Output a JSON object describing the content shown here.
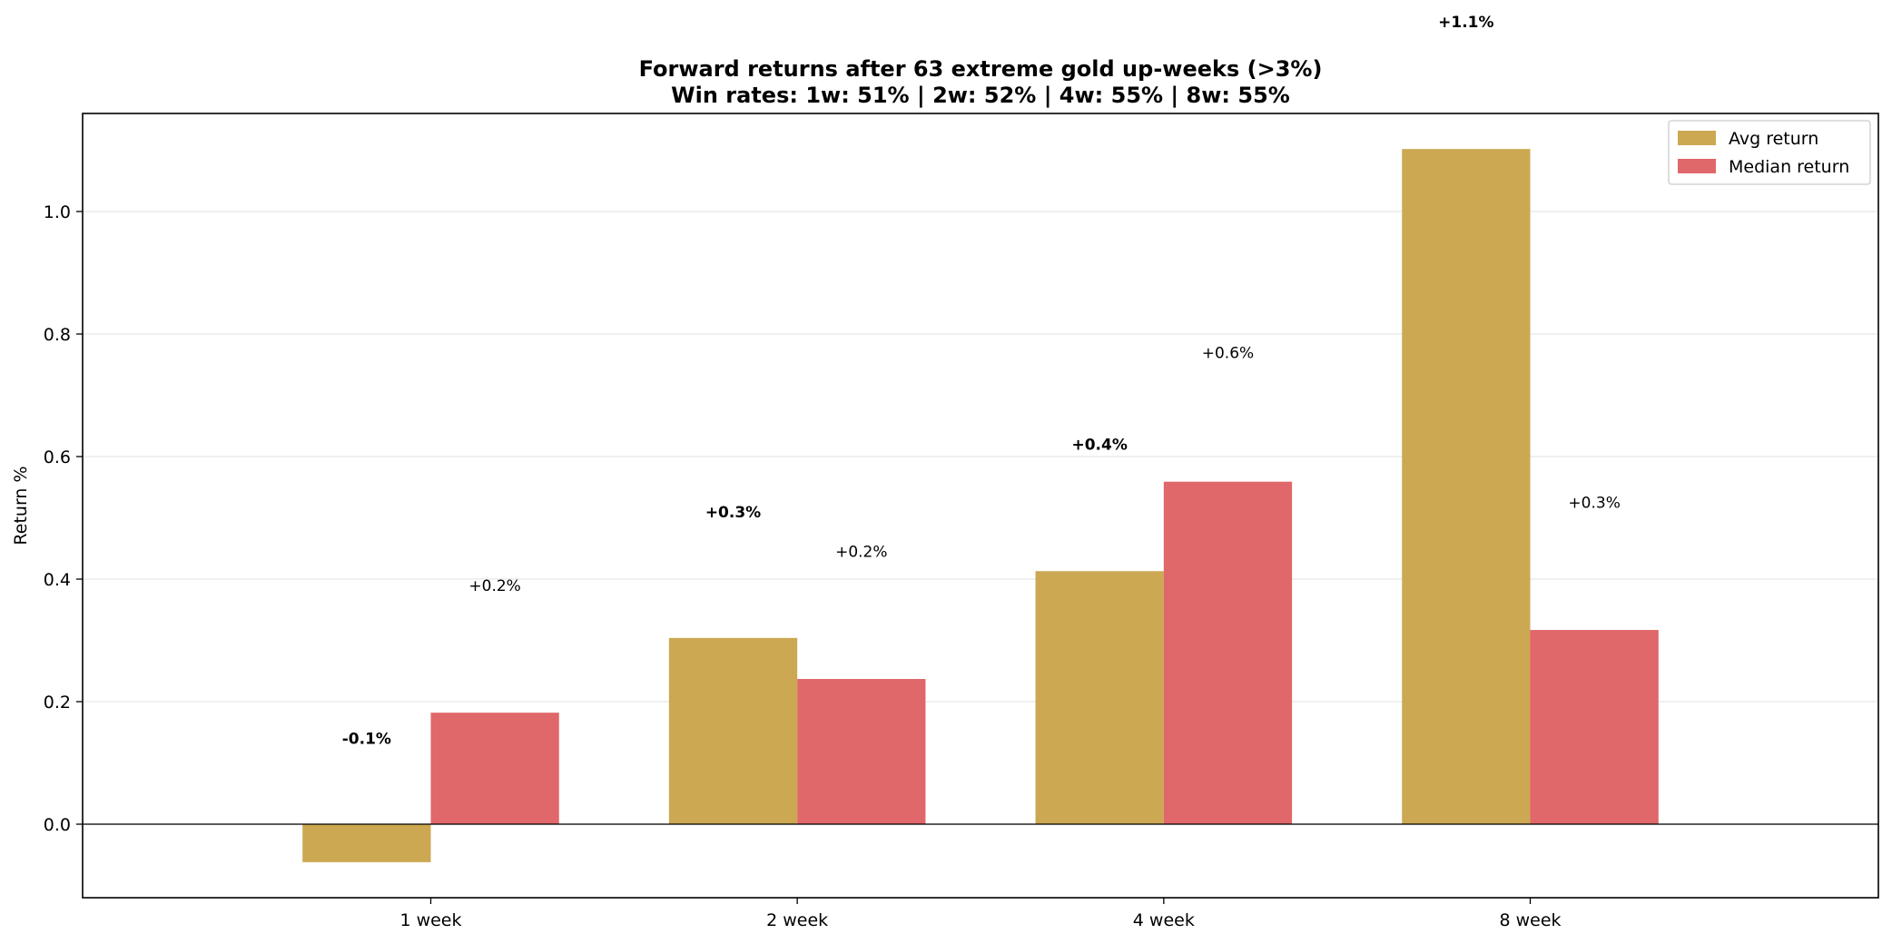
{
  "chart_data": {
    "type": "bar",
    "title": "Forward returns after 63 extreme gold up-weeks (>3%)",
    "subtitle": "Win rates: 1w: 51% | 2w: 52% | 4w: 55% | 8w: 55%",
    "xlabel": "",
    "ylabel": "Return %",
    "categories": [
      "1 week",
      "2 week",
      "4 week",
      "8 week"
    ],
    "ylim": [
      -0.12,
      1.16
    ],
    "yticks": [
      0.0,
      0.2,
      0.4,
      0.6,
      0.8,
      1.0
    ],
    "ytick_labels": [
      "0.0",
      "0.2",
      "0.4",
      "0.6",
      "0.8",
      "1.0"
    ],
    "grid": "horizontal",
    "legend_position": "top-right",
    "series": [
      {
        "name": "Avg return",
        "color": "#CCA852",
        "values": [
          -0.062,
          0.304,
          0.413,
          1.102
        ],
        "labels": [
          "-0.1%",
          "+0.3%",
          "+0.4%",
          "+1.1%"
        ],
        "label_values": [
          0.14,
          0.51,
          0.62,
          1.31
        ],
        "label_weight": "bold"
      },
      {
        "name": "Median return",
        "color": "#E0676A",
        "values": [
          0.182,
          0.237,
          0.559,
          0.317
        ],
        "labels": [
          "+0.2%",
          "+0.2%",
          "+0.6%",
          "+0.3%"
        ],
        "label_values": [
          0.39,
          0.445,
          0.77,
          0.525
        ],
        "label_weight": "normal"
      }
    ]
  }
}
